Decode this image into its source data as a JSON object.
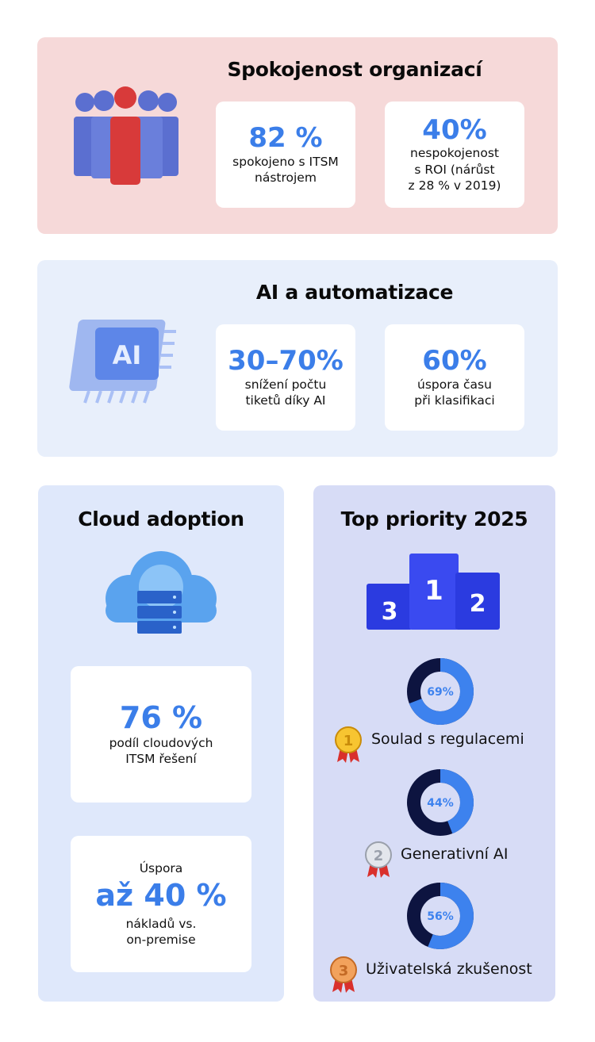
{
  "satisfaction": {
    "title": "Spokojenost organizací",
    "stats": [
      {
        "value": "82 %",
        "label_lines": [
          "spokojeno s ITSM",
          "nástrojem"
        ]
      },
      {
        "value": "40%",
        "label_lines": [
          "nespokojenost",
          "s ROI (nárůst",
          "z 28 % v 2019)"
        ]
      }
    ]
  },
  "ai": {
    "title": "AI a automatizace",
    "chip_text": "AI",
    "stats": [
      {
        "value": "30–70%",
        "label_lines": [
          "snížení počtu",
          "tiketů díky AI"
        ]
      },
      {
        "value": "60%",
        "label_lines": [
          "úspora času",
          "při klasifikaci"
        ]
      }
    ]
  },
  "cloud": {
    "title": "Cloud adoption",
    "stat1": {
      "value": "76 %",
      "label_lines": [
        "podíl cloudových",
        "ITSM řešení"
      ]
    },
    "stat2": {
      "prefix": "Úspora",
      "value": "až 40 %",
      "label_lines": [
        "nákladů vs.",
        "on-premise"
      ]
    }
  },
  "priorities": {
    "title": "Top priority 2025",
    "podium": [
      "3",
      "1",
      "2"
    ],
    "items": [
      {
        "rank": "1",
        "label": "Soulad s regulacemi",
        "percent": 69,
        "percent_text": "69%",
        "medal": "gold"
      },
      {
        "rank": "2",
        "label": "Generativní AI",
        "percent": 44,
        "percent_text": "44%",
        "medal": "silver"
      },
      {
        "rank": "3",
        "label": "Uživatelská zkušenost",
        "percent": 56,
        "percent_text": "56%",
        "medal": "bronze"
      }
    ]
  },
  "colors": {
    "accent": "#3b7ee9",
    "donut_fill": "#3d82ee",
    "donut_track": "#0d1440",
    "panel_pink": "#f6d9d9",
    "panel_blue": "#e8effb",
    "panel_cloud": "#dfe8fb",
    "panel_priority": "#d7dcf6"
  }
}
